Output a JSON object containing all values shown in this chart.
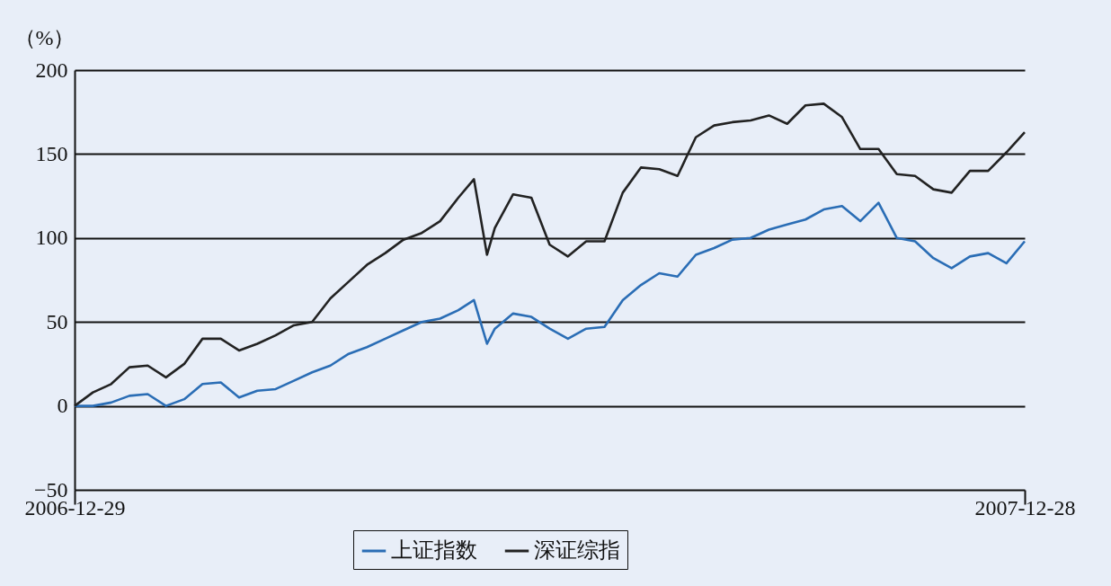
{
  "chart_data": {
    "type": "line",
    "ylabel": "（%）",
    "x": [
      "2006-12-29",
      "2007-01-05",
      "2007-01-12",
      "2007-01-19",
      "2007-01-26",
      "2007-02-02",
      "2007-02-09",
      "2007-02-16",
      "2007-02-23",
      "2007-03-02",
      "2007-03-09",
      "2007-03-16",
      "2007-03-23",
      "2007-03-30",
      "2007-04-06",
      "2007-04-13",
      "2007-04-20",
      "2007-04-27",
      "2007-05-04",
      "2007-05-11",
      "2007-05-18",
      "2007-05-25",
      "2007-05-31",
      "2007-06-05",
      "2007-06-08",
      "2007-06-15",
      "2007-06-22",
      "2007-06-29",
      "2007-07-06",
      "2007-07-13",
      "2007-07-20",
      "2007-07-27",
      "2007-08-03",
      "2007-08-10",
      "2007-08-17",
      "2007-08-24",
      "2007-08-31",
      "2007-09-07",
      "2007-09-14",
      "2007-09-21",
      "2007-09-28",
      "2007-10-05",
      "2007-10-12",
      "2007-10-19",
      "2007-10-26",
      "2007-11-02",
      "2007-11-09",
      "2007-11-16",
      "2007-11-23",
      "2007-11-30",
      "2007-12-07",
      "2007-12-14",
      "2007-12-21",
      "2007-12-28"
    ],
    "series": [
      {
        "name": "上证指数",
        "color": "#2a6db5",
        "values": [
          0,
          0,
          2,
          6,
          7,
          0,
          4,
          13,
          14,
          5,
          9,
          10,
          15,
          20,
          24,
          31,
          35,
          40,
          45,
          50,
          52,
          57,
          63,
          37,
          46,
          55,
          53,
          46,
          40,
          46,
          47,
          63,
          72,
          79,
          77,
          90,
          94,
          99,
          100,
          105,
          108,
          111,
          117,
          119,
          110,
          121,
          100,
          98,
          88,
          82,
          89,
          91,
          85,
          98
        ]
      },
      {
        "name": "深证综指",
        "color": "#222222",
        "values": [
          0,
          8,
          13,
          23,
          24,
          17,
          25,
          40,
          40,
          33,
          37,
          42,
          48,
          50,
          64,
          74,
          84,
          91,
          99,
          103,
          110,
          124,
          135,
          90,
          106,
          126,
          124,
          96,
          89,
          98,
          98,
          127,
          142,
          141,
          137,
          160,
          167,
          169,
          170,
          173,
          168,
          179,
          180,
          172,
          153,
          153,
          138,
          137,
          129,
          127,
          140,
          140,
          151,
          163
        ]
      }
    ],
    "xlim": [
      "2006-12-29",
      "2007-12-28"
    ],
    "xticks": [
      {
        "value": "2006-12-29",
        "label": "2006-12-29"
      },
      {
        "value": "2007-12-28",
        "label": "2007-12-28"
      }
    ],
    "ylim": [
      -50,
      200
    ],
    "yticks": [
      -50,
      0,
      50,
      100,
      150,
      200
    ],
    "grid": "y",
    "legend": "bottom",
    "line_style": "solid"
  }
}
